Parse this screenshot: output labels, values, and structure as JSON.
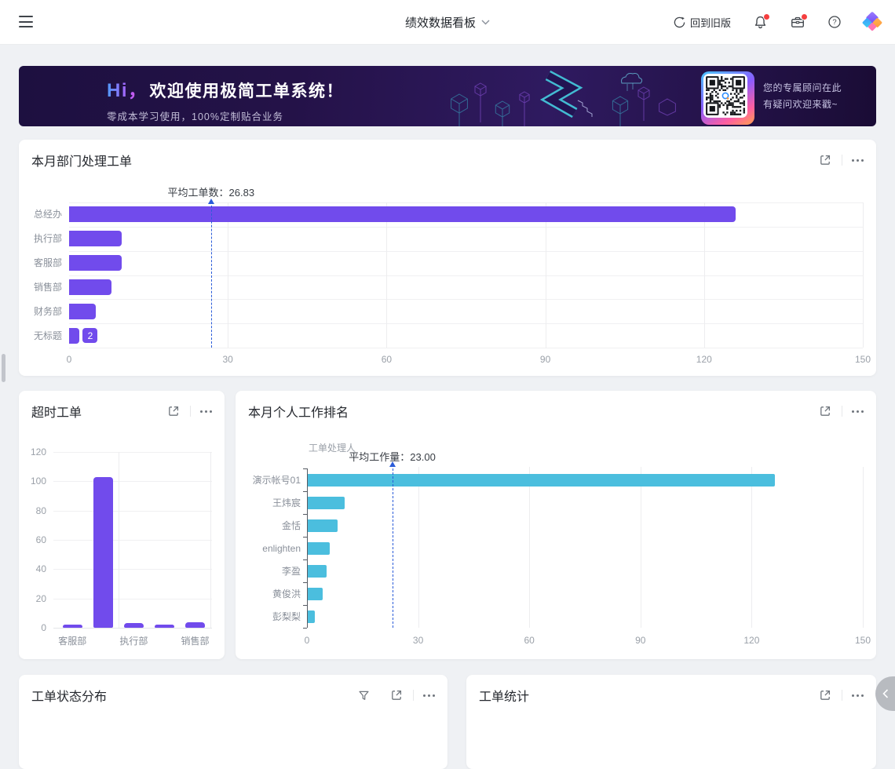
{
  "topbar": {
    "title": "绩效数据看板",
    "back_to_old": "回到旧版"
  },
  "banner": {
    "hi": "Hi，",
    "welcome": "欢迎使用极简工单系统！",
    "subtitle": "零成本学习使用，100%定制贴合业务",
    "qr_line1": "您的专属顾问在此",
    "qr_line2": "有疑问欢迎来戳~"
  },
  "cards": {
    "dept_title": "本月部门处理工单",
    "overtime_title": "超时工单",
    "personal_title": "本月个人工作排名",
    "status_title": "工单状态分布",
    "stats_title": "工单统计"
  },
  "colors": {
    "purple": "#714bec",
    "cyan": "#4bbede",
    "avg_line_blue": "#2b5cd9"
  },
  "chart_data": [
    {
      "id": "dept",
      "type": "bar",
      "orientation": "horizontal",
      "title": "本月部门处理工单",
      "categories": [
        "总经办",
        "执行部",
        "客服部",
        "销售部",
        "财务部",
        "无标题"
      ],
      "values": [
        126,
        10,
        10,
        8,
        5,
        2
      ],
      "xlim": [
        0,
        150
      ],
      "xticks": [
        0,
        30,
        60,
        90,
        120,
        150
      ],
      "average": 26.83,
      "average_label": "平均工单数：26.83",
      "last_value_label": "2",
      "bar_color": "#714bec",
      "grid": true,
      "legend": "none"
    },
    {
      "id": "overtime",
      "type": "bar",
      "orientation": "vertical",
      "title": "超时工单",
      "categories": [
        "客服部",
        "",
        "执行部",
        "",
        "销售部"
      ],
      "values": [
        2,
        103,
        3,
        2,
        4
      ],
      "ylim": [
        0,
        120
      ],
      "yticks": [
        0,
        20,
        40,
        60,
        80,
        100,
        120
      ],
      "bar_color": "#714bec",
      "grid": true,
      "legend": "none"
    },
    {
      "id": "personal",
      "type": "bar",
      "orientation": "horizontal",
      "title": "本月个人工作排名",
      "axis_name": "工单处理人",
      "categories": [
        "演示帐号01",
        "王炜宸",
        "金恬",
        "enlighten",
        "李盈",
        "黄俊洪",
        "彭梨梨"
      ],
      "values": [
        126,
        10,
        8,
        6,
        5,
        4,
        2
      ],
      "xlim": [
        0,
        150
      ],
      "xticks": [
        0,
        30,
        60,
        90,
        120,
        150
      ],
      "average": 23.0,
      "average_label": "平均工作量：23.00",
      "bar_color": "#4bbede",
      "grid": true,
      "legend": "none"
    }
  ]
}
